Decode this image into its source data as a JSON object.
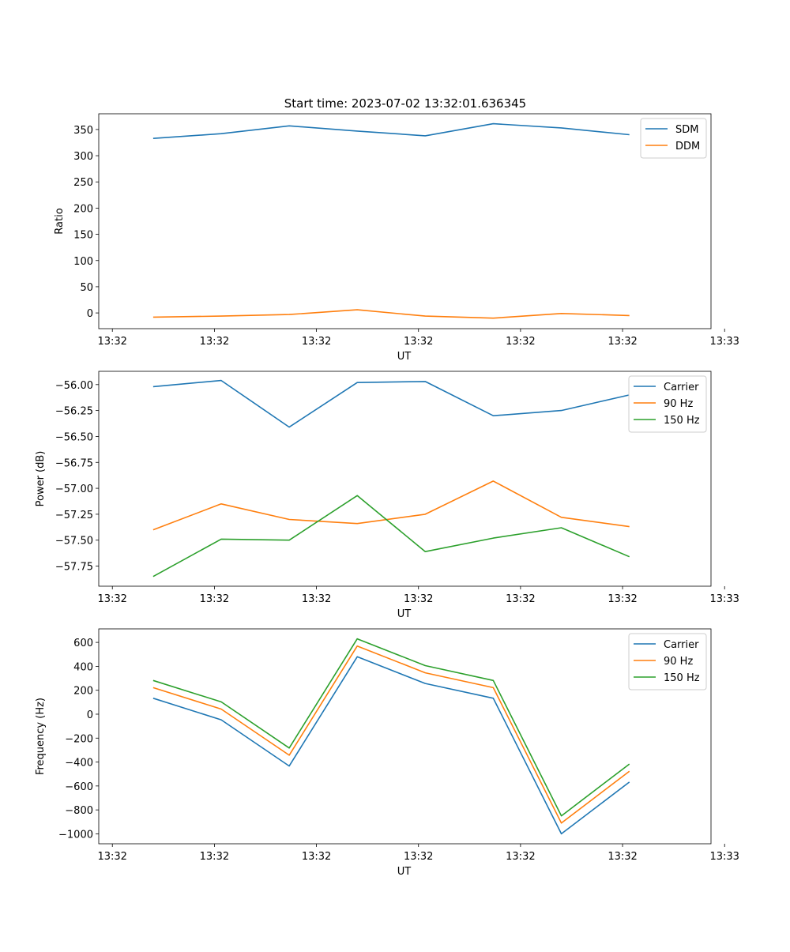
{
  "figure_title": "Start time: 2023-07-02 13:32:01.636345",
  "chart_data": [
    {
      "type": "line",
      "title": "Start time: 2023-07-02 13:32:01.636345",
      "xlabel": "UT",
      "ylabel": "Ratio",
      "x": [
        1,
        2,
        3,
        4,
        5,
        6,
        7,
        8
      ],
      "xlim": [
        0.2,
        9.2
      ],
      "x_ticks": [
        0.4,
        1.9,
        3.4,
        4.9,
        6.4,
        7.9,
        9.4
      ],
      "x_tick_labels": [
        "13:32",
        "13:32",
        "13:32",
        "13:32",
        "13:32",
        "13:32",
        "13:33"
      ],
      "ylim": [
        -30,
        380
      ],
      "y_ticks": [
        0,
        50,
        100,
        150,
        200,
        250,
        300,
        350
      ],
      "y_tick_labels": [
        "0",
        "50",
        "100",
        "150",
        "200",
        "250",
        "300",
        "350"
      ],
      "legend_position": "top-right",
      "series": [
        {
          "name": "SDM",
          "color": "#1f77b4",
          "values": [
            333,
            342,
            357,
            347,
            338,
            361,
            353,
            340
          ]
        },
        {
          "name": "DDM",
          "color": "#ff7f0e",
          "values": [
            -8,
            -6,
            -3,
            6,
            -6,
            -10,
            -1,
            -5
          ]
        }
      ]
    },
    {
      "type": "line",
      "title": "",
      "xlabel": "UT",
      "ylabel": "Power (dB)",
      "x": [
        1,
        2,
        3,
        4,
        5,
        6,
        7,
        8
      ],
      "xlim": [
        0.2,
        9.2
      ],
      "x_ticks": [
        0.4,
        1.9,
        3.4,
        4.9,
        6.4,
        7.9,
        9.4
      ],
      "x_tick_labels": [
        "13:32",
        "13:32",
        "13:32",
        "13:32",
        "13:32",
        "13:32",
        "13:33"
      ],
      "ylim": [
        -57.944,
        -55.872
      ],
      "y_ticks": [
        -57.75,
        -57.5,
        -57.25,
        -57.0,
        -56.75,
        -56.5,
        -56.25,
        -56.0
      ],
      "y_tick_labels": [
        "−57.75",
        "−57.50",
        "−57.25",
        "−57.00",
        "−56.75",
        "−56.50",
        "−56.25",
        "−56.00"
      ],
      "legend_position": "top-right",
      "series": [
        {
          "name": "Carrier",
          "color": "#1f77b4",
          "values": [
            -56.02,
            -55.96,
            -56.41,
            -55.98,
            -55.97,
            -56.3,
            -56.25,
            -56.1
          ]
        },
        {
          "name": "90 Hz",
          "color": "#ff7f0e",
          "values": [
            -57.4,
            -57.15,
            -57.3,
            -57.34,
            -57.25,
            -56.93,
            -57.28,
            -57.37
          ]
        },
        {
          "name": "150 Hz",
          "color": "#2ca02c",
          "values": [
            -57.85,
            -57.49,
            -57.5,
            -57.07,
            -57.61,
            -57.48,
            -57.38,
            -57.66
          ]
        }
      ]
    },
    {
      "type": "line",
      "title": "",
      "xlabel": "UT",
      "ylabel": "Frequency (Hz)",
      "x": [
        1,
        2,
        3,
        4,
        5,
        6,
        7,
        8
      ],
      "xlim": [
        0.2,
        9.2
      ],
      "x_ticks": [
        0.4,
        1.9,
        3.4,
        4.9,
        6.4,
        7.9,
        9.4
      ],
      "x_tick_labels": [
        "13:32",
        "13:32",
        "13:32",
        "13:32",
        "13:32",
        "13:32",
        "13:33"
      ],
      "ylim": [
        -1083,
        713
      ],
      "y_ticks": [
        -1000,
        -800,
        -600,
        -400,
        -200,
        0,
        200,
        400,
        600
      ],
      "y_tick_labels": [
        "−1000",
        "−800",
        "−600",
        "−400",
        "−200",
        "0",
        "200",
        "400",
        "600"
      ],
      "legend_position": "top-right",
      "series": [
        {
          "name": "Carrier",
          "color": "#1f77b4",
          "values": [
            133,
            -47,
            -433,
            480,
            257,
            133,
            -1000,
            -567
          ]
        },
        {
          "name": "90 Hz",
          "color": "#ff7f0e",
          "values": [
            222,
            43,
            -343,
            570,
            346,
            222,
            -910,
            -477
          ]
        },
        {
          "name": "150 Hz",
          "color": "#2ca02c",
          "values": [
            282,
            103,
            -283,
            630,
            406,
            282,
            -850,
            -417
          ]
        }
      ]
    }
  ]
}
